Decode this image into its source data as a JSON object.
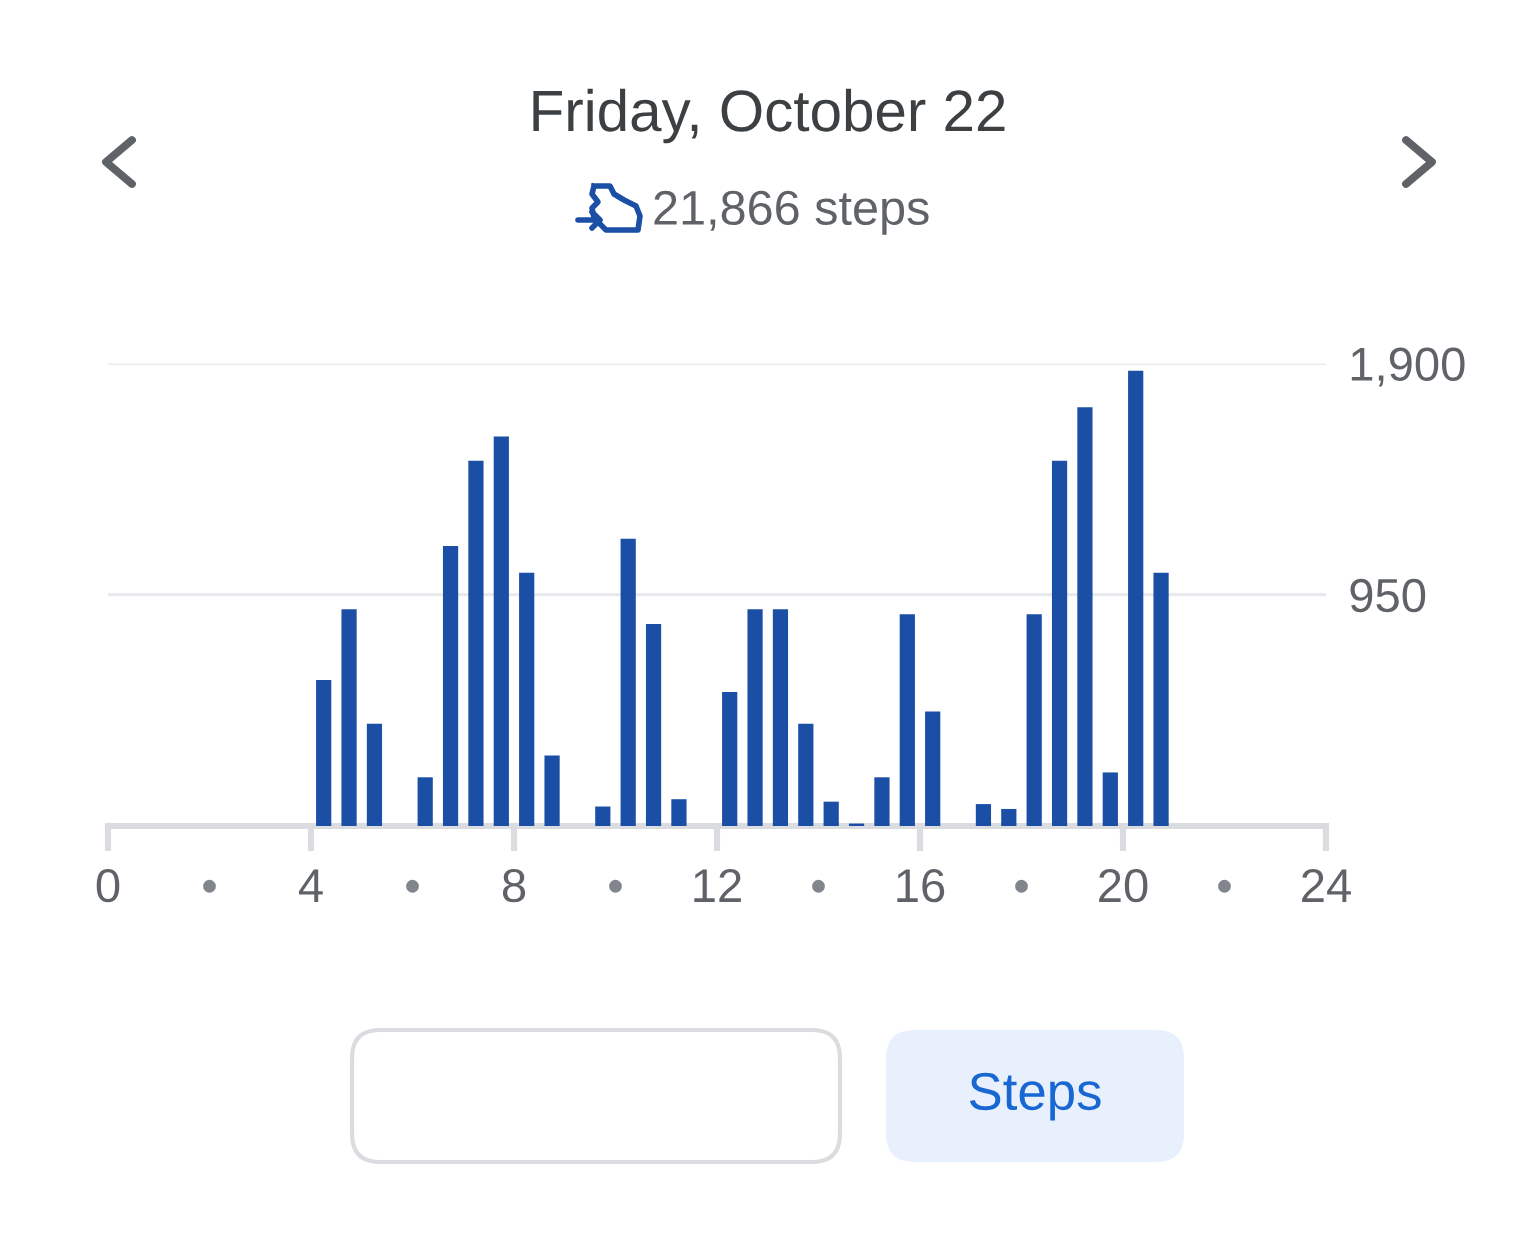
{
  "chart_data": {
    "type": "bar",
    "title": "Friday, October 22",
    "subtitle": "21,866 steps",
    "x": [
      4.25,
      4.75,
      5.25,
      6.25,
      6.75,
      7.25,
      7.75,
      8.25,
      8.75,
      9.75,
      10.25,
      10.75,
      11.25,
      12.25,
      12.75,
      13.25,
      13.75,
      14.25,
      14.75,
      15.25,
      15.75,
      16.25,
      17.25,
      17.75,
      18.25,
      18.75,
      19.25,
      19.75,
      20.25,
      20.75
    ],
    "values": [
      600,
      890,
      420,
      200,
      1150,
      1500,
      1600,
      1040,
      290,
      80,
      1180,
      830,
      110,
      550,
      890,
      890,
      420,
      100,
      10,
      200,
      870,
      470,
      90,
      70,
      870,
      1500,
      1720,
      220,
      1870,
      1040
    ],
    "color": "#1b4fa6",
    "xlim": [
      0,
      24
    ],
    "xticks": [
      0,
      {
        "value": 2,
        "label": "•"
      },
      4,
      {
        "value": 6,
        "label": "•"
      },
      8,
      {
        "value": 10,
        "label": "•"
      },
      12,
      {
        "value": 14,
        "label": "•"
      },
      16,
      {
        "value": 18,
        "label": "•"
      },
      20,
      {
        "value": 22,
        "label": "•"
      },
      24
    ],
    "ylim": [
      0,
      1900
    ],
    "yticks": [
      950,
      {
        "value": 1900,
        "label": "1,900"
      }
    ],
    "grid": "y",
    "annotations": [
      "Steps"
    ]
  }
}
